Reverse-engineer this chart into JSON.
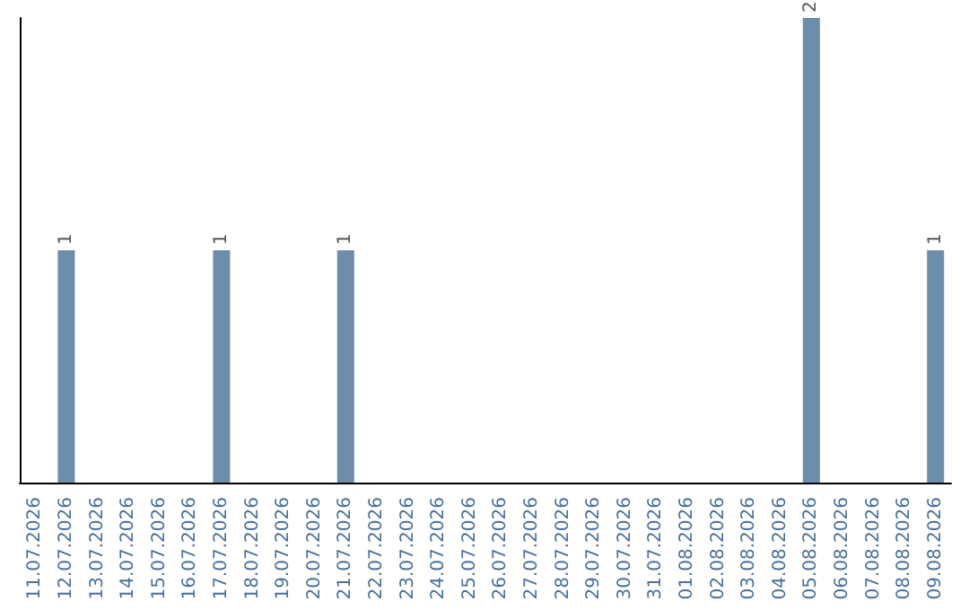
{
  "chart_data": {
    "type": "bar",
    "categories": [
      "11.07.2026",
      "12.07.2026",
      "13.07.2026",
      "14.07.2026",
      "15.07.2026",
      "16.07.2026",
      "17.07.2026",
      "18.07.2026",
      "19.07.2026",
      "20.07.2026",
      "21.07.2026",
      "22.07.2026",
      "23.07.2026",
      "24.07.2026",
      "25.07.2026",
      "26.07.2026",
      "27.07.2026",
      "28.07.2026",
      "29.07.2026",
      "30.07.2026",
      "31.07.2026",
      "01.08.2026",
      "02.08.2026",
      "03.08.2026",
      "04.08.2026",
      "05.08.2026",
      "06.08.2026",
      "07.08.2026",
      "08.08.2026",
      "09.08.2026"
    ],
    "values": [
      0,
      1,
      0,
      0,
      0,
      0,
      1,
      0,
      0,
      0,
      1,
      0,
      0,
      0,
      0,
      0,
      0,
      0,
      0,
      0,
      0,
      0,
      0,
      0,
      0,
      2,
      0,
      0,
      0,
      1
    ],
    "value_labels": [
      null,
      "1",
      null,
      null,
      null,
      null,
      "1",
      null,
      null,
      null,
      "1",
      null,
      null,
      null,
      null,
      null,
      null,
      null,
      null,
      null,
      null,
      null,
      null,
      null,
      null,
      "2",
      null,
      null,
      null,
      "1"
    ],
    "color": "#6d8eab",
    "tick_labels": "x"
  }
}
